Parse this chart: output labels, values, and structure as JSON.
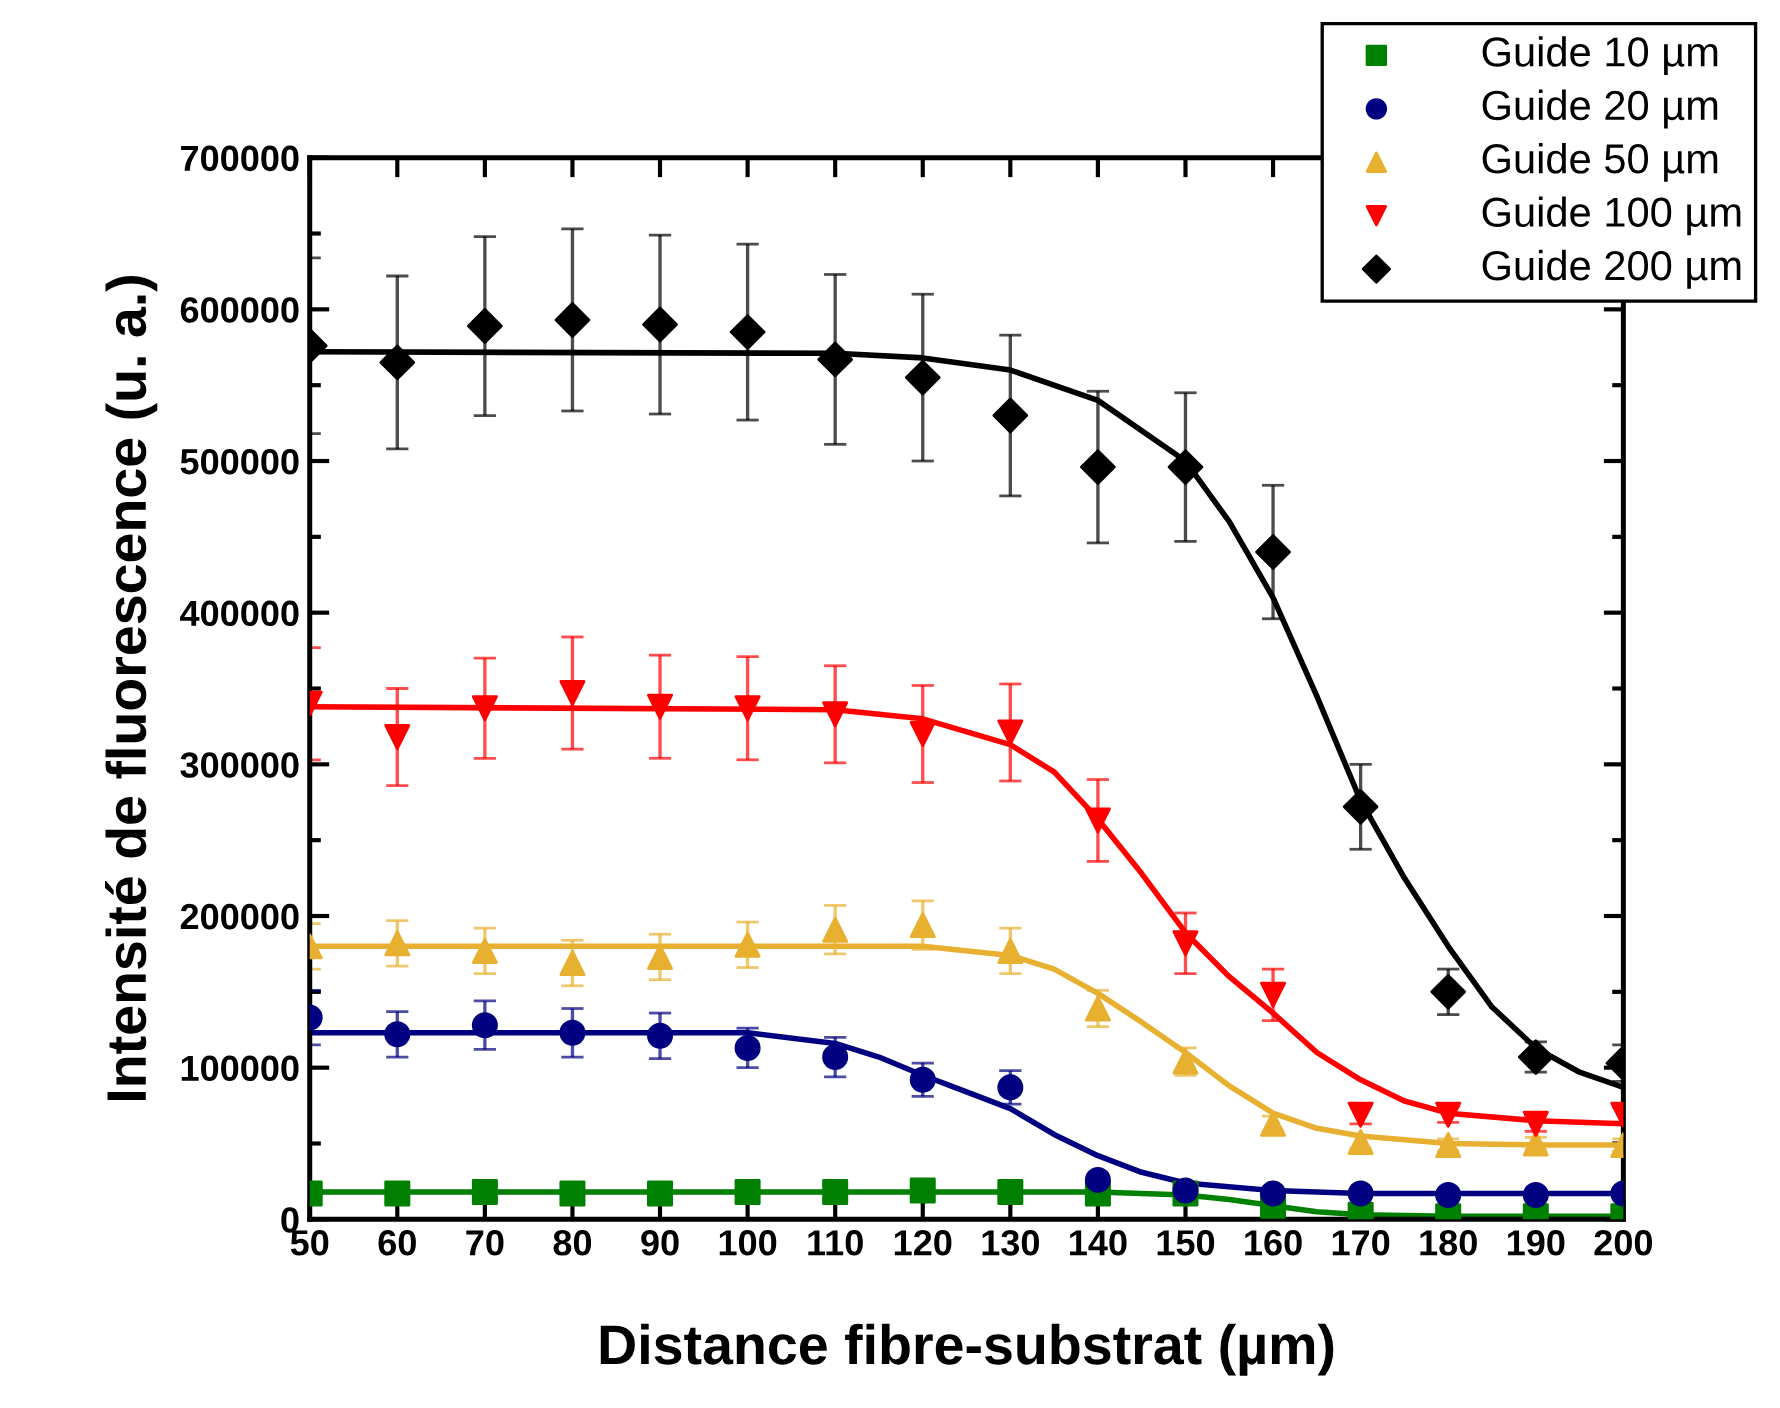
{
  "chart_data": {
    "type": "scatter",
    "xlabel": "Distance fibre-substrat (µm)",
    "ylabel": "Intensité de fluorescence (u. a.)",
    "x": [
      50,
      60,
      70,
      80,
      90,
      100,
      110,
      120,
      130,
      140,
      150,
      160,
      170,
      180,
      190,
      200
    ],
    "xlim": [
      50,
      200
    ],
    "xticks": [
      50,
      60,
      70,
      80,
      90,
      100,
      110,
      120,
      130,
      140,
      150,
      160,
      170,
      180,
      190,
      200
    ],
    "ylim": [
      0,
      700000
    ],
    "yticks": [
      0,
      100000,
      200000,
      300000,
      400000,
      500000,
      600000,
      700000
    ],
    "grid": false,
    "legend": "top right",
    "series": [
      {
        "name": "Guide 10 µm",
        "color": "#008000",
        "marker": "square",
        "values": [
          17000,
          17000,
          18000,
          17000,
          17000,
          18000,
          18000,
          19000,
          18000,
          17000,
          17000,
          9000,
          3000,
          2000,
          2000,
          2000
        ]
      },
      {
        "name": "Guide 20 µm",
        "color": "#000080",
        "marker": "circle",
        "values": [
          133000,
          122000,
          128000,
          123000,
          121000,
          113000,
          107000,
          92000,
          87000,
          26000,
          19000,
          17000,
          17000,
          16000,
          16000,
          17000
        ],
        "errors": [
          18000,
          15000,
          16000,
          16000,
          15000,
          13000,
          13000,
          11000,
          11000,
          3000,
          null,
          null,
          null,
          null,
          null,
          null
        ]
      },
      {
        "name": "Guide 50 µm",
        "color": "#e8b030",
        "marker": "triangle",
        "values": [
          180000,
          182000,
          177000,
          169000,
          173000,
          181000,
          191000,
          194000,
          177000,
          139000,
          104000,
          63000,
          51000,
          49000,
          50000,
          49000
        ],
        "errors": [
          15000,
          15000,
          15000,
          15000,
          15000,
          15000,
          16000,
          16000,
          15000,
          12000,
          9000,
          5000,
          4000,
          4000,
          4000,
          4000
        ]
      },
      {
        "name": "Guide 100 µm",
        "color": "#ff0000",
        "marker": "triangle_down",
        "values": [
          340000,
          318000,
          337000,
          347000,
          338000,
          337000,
          333000,
          320000,
          321000,
          263000,
          182000,
          148000,
          69000,
          69000,
          63000,
          69000
        ],
        "errors": [
          37000,
          32000,
          33000,
          37000,
          34000,
          34000,
          32000,
          32000,
          32000,
          27000,
          20000,
          17000,
          6000,
          5000,
          5000,
          5000
        ]
      },
      {
        "name": "Guide 200 µm",
        "color": "#000000",
        "marker": "diamond",
        "values": [
          576000,
          565000,
          589000,
          593000,
          590000,
          585000,
          567000,
          555000,
          530000,
          496000,
          496000,
          440000,
          272000,
          150000,
          107000,
          103000
        ],
        "errors": [
          58000,
          57000,
          59000,
          60000,
          59000,
          58000,
          56000,
          55000,
          53000,
          50000,
          49000,
          44000,
          28000,
          15000,
          10000,
          12000
        ]
      },
      {
        "type": "line",
        "color": "#008000",
        "x": [
          50,
          100,
          140,
          150,
          155,
          160,
          165,
          170,
          180,
          200
        ],
        "values": [
          18000,
          18000,
          18000,
          16000,
          13000,
          9000,
          5000,
          3000,
          2000,
          2000
        ]
      },
      {
        "type": "line",
        "color": "#000080",
        "x": [
          50,
          100,
          110,
          115,
          120,
          125,
          130,
          135,
          140,
          145,
          150,
          160,
          170,
          200
        ],
        "values": [
          123000,
          123000,
          116000,
          107000,
          95000,
          84000,
          73000,
          56000,
          42000,
          31000,
          24000,
          19000,
          17000,
          17000
        ]
      },
      {
        "type": "line",
        "color": "#e8b030",
        "x": [
          50,
          120,
          130,
          135,
          140,
          145,
          150,
          155,
          160,
          165,
          170,
          180,
          190,
          200
        ],
        "values": [
          180000,
          180000,
          174000,
          165000,
          149000,
          130000,
          110000,
          88000,
          70000,
          60000,
          55000,
          50000,
          49000,
          49000
        ]
      },
      {
        "type": "line",
        "color": "#ff0000",
        "x": [
          50,
          110,
          120,
          130,
          135,
          140,
          145,
          150,
          155,
          160,
          165,
          170,
          175,
          180,
          190,
          200
        ],
        "values": [
          338000,
          336000,
          330000,
          313000,
          295000,
          264000,
          228000,
          189000,
          160000,
          136000,
          110000,
          92000,
          78000,
          70000,
          65000,
          63000
        ]
      },
      {
        "type": "line",
        "color": "#000000",
        "x": [
          50,
          110,
          120,
          130,
          140,
          150,
          155,
          160,
          165,
          170,
          175,
          180,
          185,
          190,
          195,
          200
        ],
        "values": [
          572000,
          571000,
          568000,
          560000,
          540000,
          500000,
          460000,
          410000,
          345000,
          276000,
          225000,
          180000,
          140000,
          113000,
          97000,
          87000
        ]
      }
    ]
  }
}
